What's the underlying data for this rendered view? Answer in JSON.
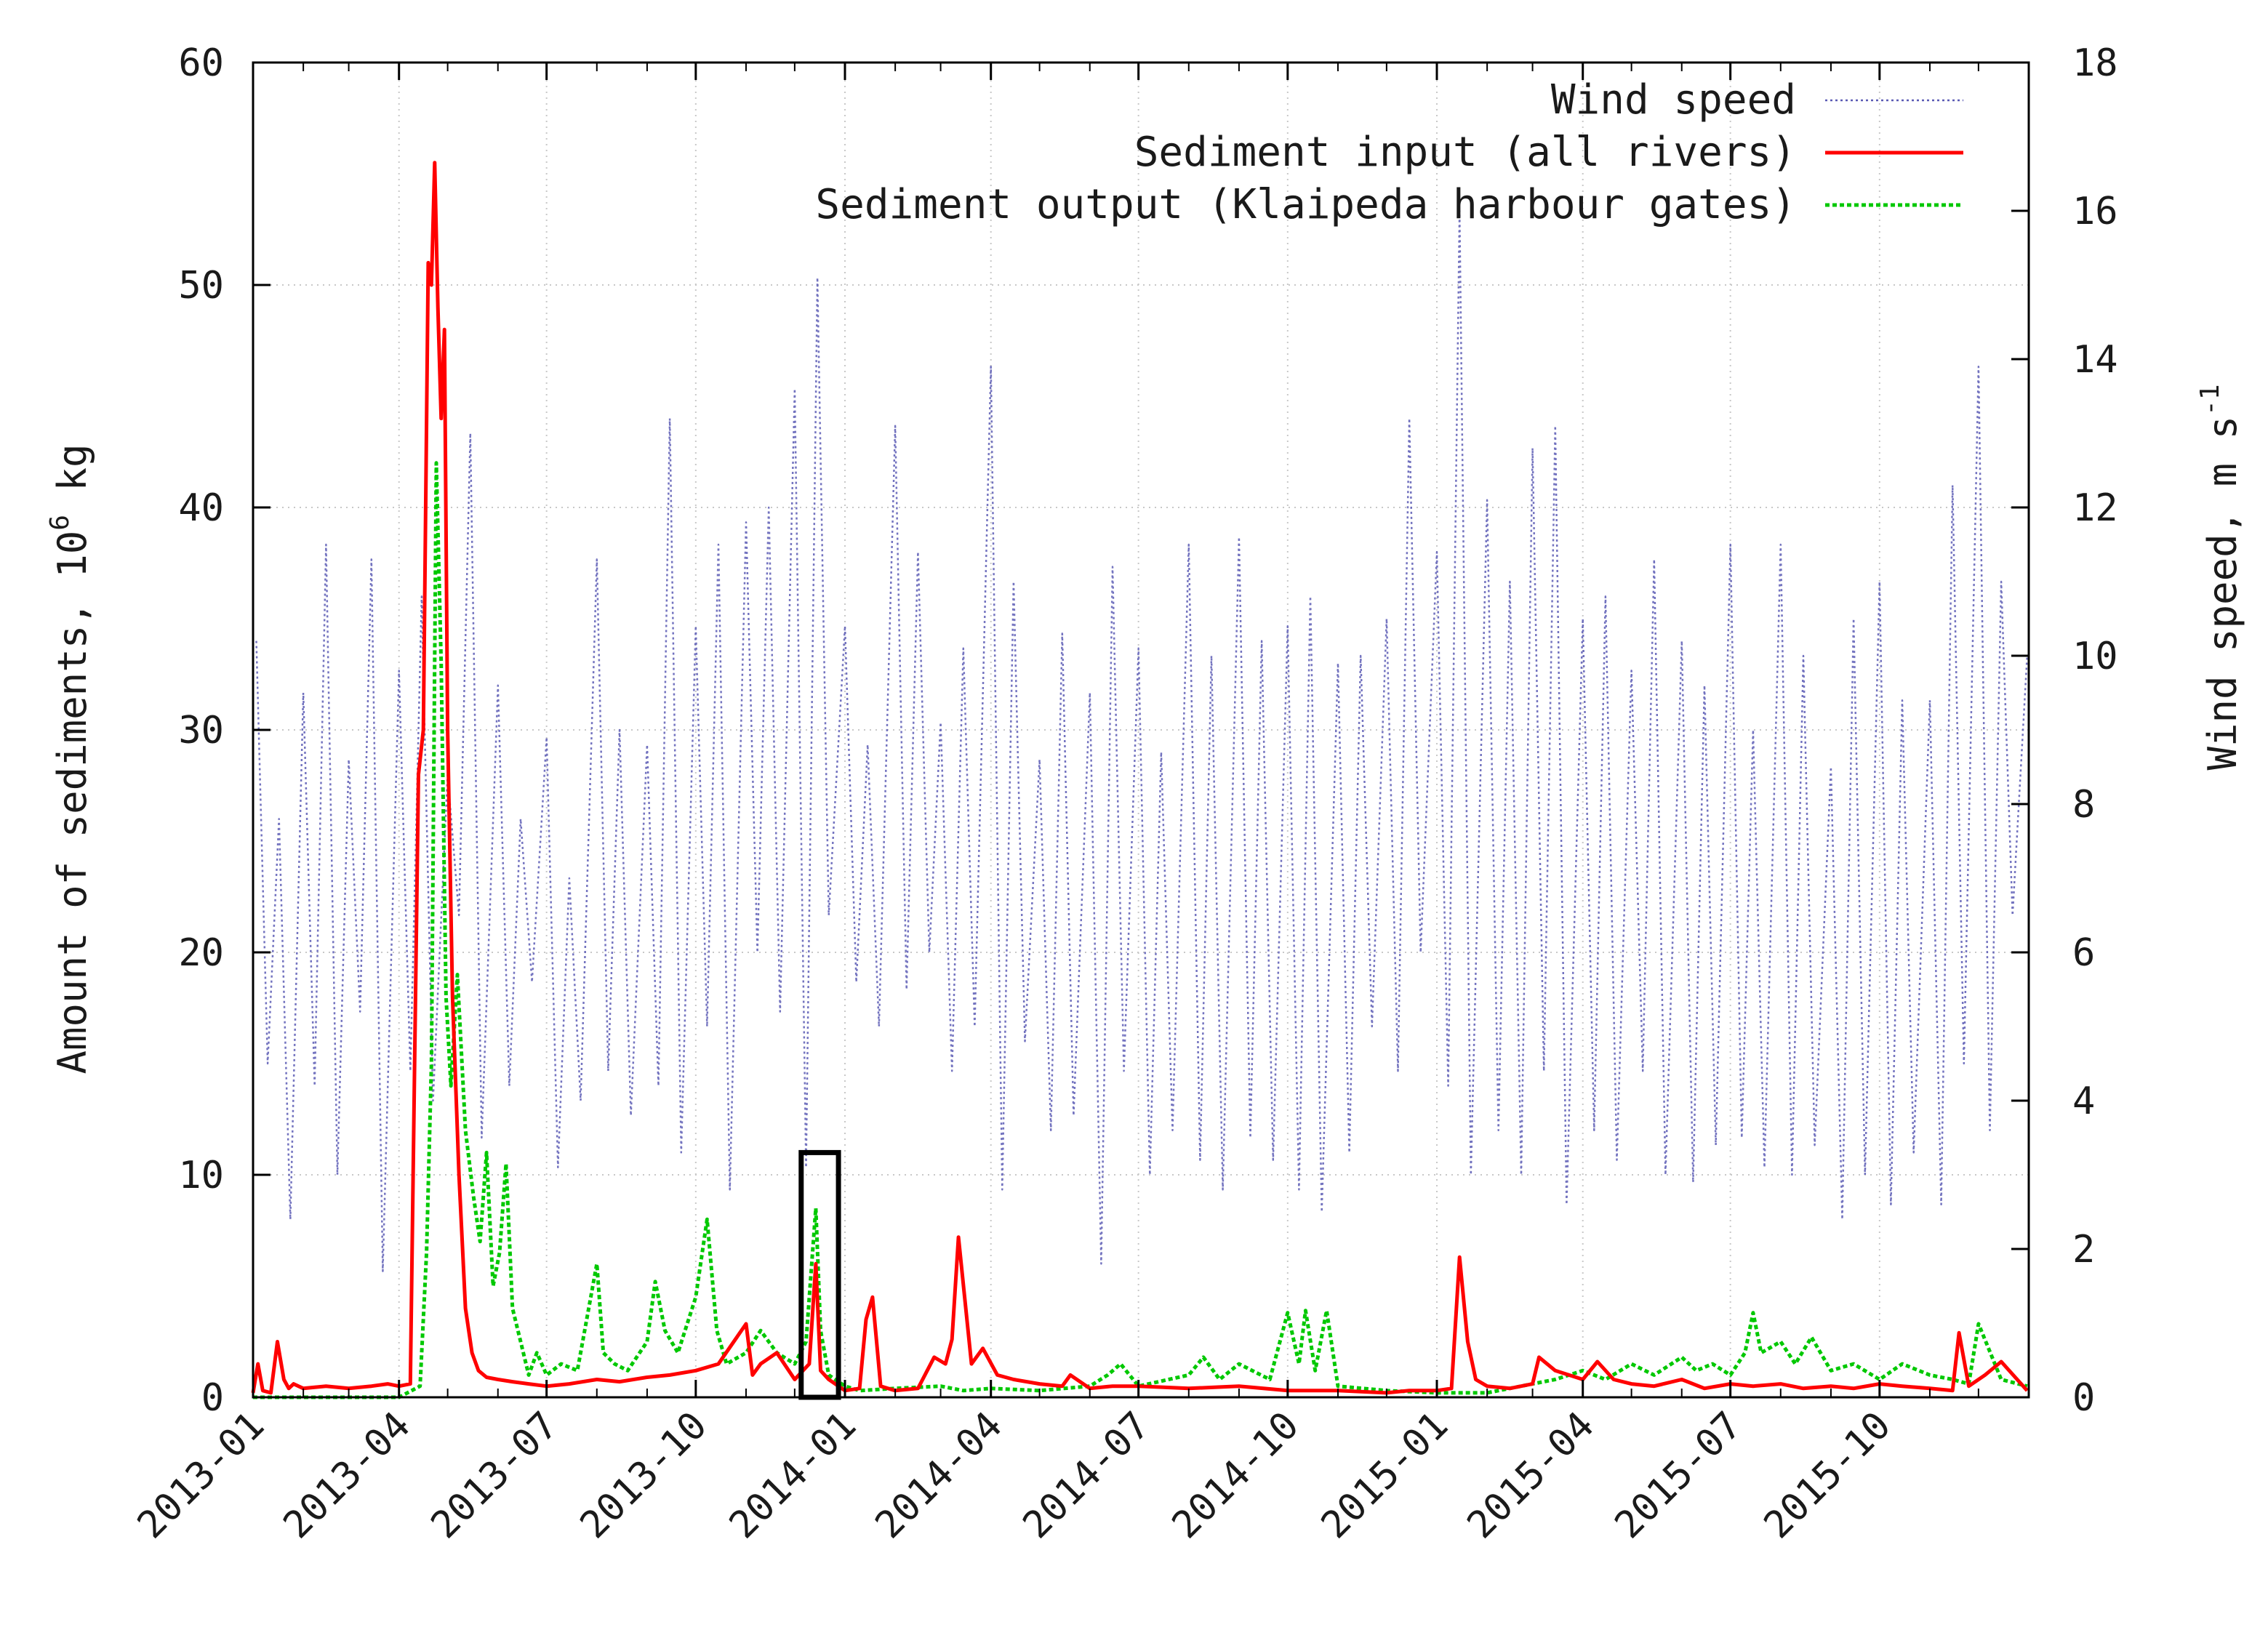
{
  "chart_data": {
    "type": "line",
    "title": "",
    "xlabel": "",
    "ylabel": "Amount of sediments, 10",
    "ylabel_sup": "6",
    "ylabel_unit": " kg",
    "y2label": "Wind speed, m s",
    "y2label_sup": "-1",
    "xlim": [
      "2013-01-01",
      "2016-01-01"
    ],
    "ylim": [
      0,
      60
    ],
    "y2lim": [
      0,
      18
    ],
    "grid": true,
    "legend_position": "top-right",
    "x_ticks": [
      "2013-01",
      "2013-04",
      "2013-07",
      "2013-10",
      "2014-01",
      "2014-04",
      "2014-07",
      "2014-10",
      "2015-01",
      "2015-04",
      "2015-07",
      "2015-10"
    ],
    "y_ticks": [
      "0",
      "10",
      "20",
      "30",
      "40",
      "50",
      "60"
    ],
    "y2_ticks": [
      "0",
      "2",
      "4",
      "6",
      "8",
      "10",
      "12",
      "14",
      "16",
      "18"
    ],
    "highlight_box": {
      "x": [
        "2013-12-05",
        "2013-12-28"
      ],
      "y": [
        0,
        11
      ]
    },
    "series": [
      {
        "name": "Wind speed",
        "axis": "right",
        "color": "#5a5ab4",
        "style": "dotted",
        "x": [
          "2013-01-03",
          "2013-01-10",
          "2013-01-17",
          "2013-01-24",
          "2013-02-01",
          "2013-02-08",
          "2013-02-15",
          "2013-02-22",
          "2013-03-01",
          "2013-03-08",
          "2013-03-15",
          "2013-03-22",
          "2013-04-01",
          "2013-04-08",
          "2013-04-15",
          "2013-04-22",
          "2013-05-01",
          "2013-05-08",
          "2013-05-15",
          "2013-05-22",
          "2013-06-01",
          "2013-06-08",
          "2013-06-15",
          "2013-06-22",
          "2013-07-01",
          "2013-07-08",
          "2013-07-15",
          "2013-07-22",
          "2013-08-01",
          "2013-08-08",
          "2013-08-15",
          "2013-08-22",
          "2013-09-01",
          "2013-09-08",
          "2013-09-15",
          "2013-09-22",
          "2013-10-01",
          "2013-10-08",
          "2013-10-15",
          "2013-10-22",
          "2013-11-01",
          "2013-11-08",
          "2013-11-15",
          "2013-11-22",
          "2013-12-01",
          "2013-12-08",
          "2013-12-15",
          "2013-12-22",
          "2014-01-01",
          "2014-01-08",
          "2014-01-15",
          "2014-01-22",
          "2014-02-01",
          "2014-02-08",
          "2014-02-15",
          "2014-02-22",
          "2014-03-01",
          "2014-03-08",
          "2014-03-15",
          "2014-03-22",
          "2014-04-01",
          "2014-04-08",
          "2014-04-15",
          "2014-04-22",
          "2014-05-01",
          "2014-05-08",
          "2014-05-15",
          "2014-05-22",
          "2014-06-01",
          "2014-06-08",
          "2014-06-15",
          "2014-06-22",
          "2014-07-01",
          "2014-07-08",
          "2014-07-15",
          "2014-07-22",
          "2014-08-01",
          "2014-08-08",
          "2014-08-15",
          "2014-08-22",
          "2014-09-01",
          "2014-09-08",
          "2014-09-15",
          "2014-09-22",
          "2014-10-01",
          "2014-10-08",
          "2014-10-15",
          "2014-10-22",
          "2014-11-01",
          "2014-11-08",
          "2014-11-15",
          "2014-11-22",
          "2014-12-01",
          "2014-12-08",
          "2014-12-15",
          "2014-12-22",
          "2015-01-01",
          "2015-01-08",
          "2015-01-15",
          "2015-01-22",
          "2015-02-01",
          "2015-02-08",
          "2015-02-15",
          "2015-02-22",
          "2015-03-01",
          "2015-03-08",
          "2015-03-15",
          "2015-03-22",
          "2015-04-01",
          "2015-04-08",
          "2015-04-15",
          "2015-04-22",
          "2015-05-01",
          "2015-05-08",
          "2015-05-15",
          "2015-05-22",
          "2015-06-01",
          "2015-06-08",
          "2015-06-15",
          "2015-06-22",
          "2015-07-01",
          "2015-07-08",
          "2015-07-15",
          "2015-07-22",
          "2015-08-01",
          "2015-08-08",
          "2015-08-15",
          "2015-08-22",
          "2015-09-01",
          "2015-09-08",
          "2015-09-15",
          "2015-09-22",
          "2015-10-01",
          "2015-10-08",
          "2015-10-15",
          "2015-10-22",
          "2015-11-01",
          "2015-11-08",
          "2015-11-15",
          "2015-11-22",
          "2015-12-01",
          "2015-12-08",
          "2015-12-15",
          "2015-12-22",
          "2015-12-31"
        ],
        "values": [
          10.2,
          4.5,
          7.8,
          2.4,
          9.5,
          4.2,
          11.5,
          3.0,
          8.6,
          5.2,
          11.3,
          1.7,
          9.8,
          4.4,
          10.8,
          4.0,
          8.4,
          6.5,
          13.0,
          3.5,
          9.6,
          4.2,
          7.8,
          5.6,
          8.9,
          3.1,
          7.0,
          4.0,
          11.3,
          4.4,
          9.0,
          3.8,
          8.8,
          4.2,
          13.2,
          3.3,
          10.4,
          5.0,
          11.5,
          2.8,
          11.8,
          6.0,
          12.0,
          5.2,
          13.6,
          3.1,
          15.1,
          6.5,
          10.4,
          5.6,
          8.8,
          5.0,
          13.1,
          5.5,
          11.4,
          6.0,
          9.1,
          4.4,
          10.1,
          5.0,
          13.9,
          2.8,
          11.0,
          4.8,
          8.6,
          3.6,
          10.3,
          3.8,
          9.5,
          1.8,
          11.2,
          4.4,
          10.1,
          3.0,
          8.7,
          3.6,
          11.5,
          3.2,
          10.0,
          2.8,
          11.6,
          3.5,
          10.2,
          3.2,
          10.4,
          2.8,
          10.8,
          2.5,
          9.9,
          3.3,
          10.0,
          5.0,
          10.5,
          4.4,
          13.2,
          6.0,
          11.4,
          4.2,
          16.0,
          3.0,
          12.1,
          3.6,
          11.0,
          3.0,
          12.8,
          4.4,
          13.1,
          2.6,
          10.5,
          3.6,
          10.8,
          3.2,
          9.8,
          4.4,
          11.3,
          3.0,
          10.2,
          2.9,
          9.6,
          3.4,
          11.5,
          3.5,
          9.0,
          3.1,
          11.5,
          3.0,
          10.0,
          3.4,
          8.5,
          2.4,
          10.5,
          3.0,
          11.0,
          2.6,
          9.4,
          3.3,
          9.4,
          2.6,
          12.3,
          4.5,
          13.9,
          3.6,
          11.0,
          6.5,
          10.0
        ],
        "values_note_max": 16.0
      },
      {
        "name": "Sediment input (all rivers)",
        "axis": "left",
        "color": "#ff0000",
        "style": "solid",
        "x": [
          "2013-01-01",
          "2013-01-04",
          "2013-01-07",
          "2013-01-12",
          "2013-01-16",
          "2013-01-20",
          "2013-01-23",
          "2013-01-26",
          "2013-02-01",
          "2013-02-15",
          "2013-03-01",
          "2013-03-15",
          "2013-03-25",
          "2013-04-01",
          "2013-04-08",
          "2013-04-13",
          "2013-04-16",
          "2013-04-19",
          "2013-04-21",
          "2013-04-23",
          "2013-04-25",
          "2013-04-27",
          "2013-04-29",
          "2013-05-01",
          "2013-05-04",
          "2013-05-08",
          "2013-05-12",
          "2013-05-16",
          "2013-05-20",
          "2013-05-25",
          "2013-06-01",
          "2013-06-10",
          "2013-06-20",
          "2013-07-01",
          "2013-07-15",
          "2013-08-01",
          "2013-08-15",
          "2013-09-01",
          "2013-09-15",
          "2013-10-01",
          "2013-10-15",
          "2013-11-01",
          "2013-11-05",
          "2013-11-10",
          "2013-11-20",
          "2013-12-01",
          "2013-12-10",
          "2013-12-14",
          "2013-12-17",
          "2013-12-22",
          "2014-01-01",
          "2014-01-10",
          "2014-01-14",
          "2014-01-18",
          "2014-01-23",
          "2014-02-01",
          "2014-02-15",
          "2014-02-25",
          "2014-03-04",
          "2014-03-08",
          "2014-03-12",
          "2014-03-20",
          "2014-03-27",
          "2014-04-05",
          "2014-04-15",
          "2014-05-01",
          "2014-05-15",
          "2014-05-20",
          "2014-06-01",
          "2014-06-15",
          "2014-07-01",
          "2014-08-01",
          "2014-09-01",
          "2014-10-01",
          "2014-11-01",
          "2014-12-01",
          "2014-12-15",
          "2015-01-01",
          "2015-01-10",
          "2015-01-15",
          "2015-01-20",
          "2015-01-25",
          "2015-02-01",
          "2015-02-15",
          "2015-03-01",
          "2015-03-05",
          "2015-03-15",
          "2015-04-01",
          "2015-04-10",
          "2015-04-20",
          "2015-05-01",
          "2015-05-15",
          "2015-06-01",
          "2015-06-15",
          "2015-07-01",
          "2015-07-15",
          "2015-08-01",
          "2015-08-15",
          "2015-09-01",
          "2015-09-15",
          "2015-10-01",
          "2015-10-15",
          "2015-11-01",
          "2015-11-15",
          "2015-11-19",
          "2015-11-25",
          "2015-12-05",
          "2015-12-15",
          "2015-12-31"
        ],
        "values": [
          0.2,
          1.5,
          0.3,
          0.2,
          2.5,
          0.8,
          0.4,
          0.6,
          0.4,
          0.5,
          0.4,
          0.5,
          0.6,
          0.5,
          0.6,
          28.0,
          30.0,
          51.0,
          50.0,
          55.5,
          49.0,
          44.0,
          48.0,
          30.0,
          18.0,
          10.0,
          4.0,
          2.0,
          1.2,
          0.9,
          0.8,
          0.7,
          0.6,
          0.5,
          0.6,
          0.8,
          0.7,
          0.9,
          1.0,
          1.2,
          1.5,
          3.3,
          1.0,
          1.5,
          2.0,
          0.8,
          1.5,
          6.0,
          1.2,
          0.8,
          0.3,
          0.4,
          3.5,
          4.5,
          0.5,
          0.3,
          0.4,
          1.8,
          1.5,
          2.6,
          7.2,
          1.5,
          2.2,
          1.0,
          0.8,
          0.6,
          0.5,
          1.0,
          0.4,
          0.5,
          0.5,
          0.4,
          0.5,
          0.3,
          0.3,
          0.2,
          0.3,
          0.3,
          0.4,
          6.3,
          2.5,
          0.8,
          0.5,
          0.4,
          0.6,
          1.8,
          1.2,
          0.8,
          1.6,
          0.8,
          0.6,
          0.5,
          0.8,
          0.4,
          0.6,
          0.5,
          0.6,
          0.4,
          0.5,
          0.4,
          0.6,
          0.5,
          0.4,
          0.3,
          2.9,
          0.5,
          1.0,
          1.6,
          0.3
        ]
      },
      {
        "name": "Sediment output (Klaipeda harbour gates)",
        "axis": "left",
        "color": "#00c800",
        "style": "dotted",
        "x": [
          "2013-01-01",
          "2013-02-15",
          "2013-04-01",
          "2013-04-14",
          "2013-04-18",
          "2013-04-21",
          "2013-04-24",
          "2013-04-27",
          "2013-04-30",
          "2013-05-03",
          "2013-05-07",
          "2013-05-12",
          "2013-05-17",
          "2013-05-21",
          "2013-05-25",
          "2013-05-29",
          "2013-06-02",
          "2013-06-06",
          "2013-06-10",
          "2013-06-15",
          "2013-06-20",
          "2013-06-25",
          "2013-07-01",
          "2013-07-10",
          "2013-07-20",
          "2013-08-01",
          "2013-08-05",
          "2013-08-12",
          "2013-08-20",
          "2013-09-01",
          "2013-09-06",
          "2013-09-12",
          "2013-09-20",
          "2013-10-01",
          "2013-10-08",
          "2013-10-14",
          "2013-10-20",
          "2013-11-01",
          "2013-11-10",
          "2013-11-20",
          "2013-12-01",
          "2013-12-08",
          "2013-12-14",
          "2013-12-17",
          "2013-12-22",
          "2014-01-01",
          "2014-01-10",
          "2014-02-01",
          "2014-03-01",
          "2014-03-15",
          "2014-04-01",
          "2014-05-01",
          "2014-06-01",
          "2014-06-12",
          "2014-06-20",
          "2014-07-01",
          "2014-08-01",
          "2014-08-10",
          "2014-08-20",
          "2014-09-01",
          "2014-09-20",
          "2014-10-01",
          "2014-10-08",
          "2014-10-12",
          "2014-10-18",
          "2014-10-25",
          "2014-11-01",
          "2014-12-01",
          "2015-01-01",
          "2015-02-01",
          "2015-03-01",
          "2015-03-15",
          "2015-04-01",
          "2015-04-15",
          "2015-05-01",
          "2015-05-15",
          "2015-06-01",
          "2015-06-10",
          "2015-06-20",
          "2015-07-01",
          "2015-07-10",
          "2015-07-15",
          "2015-07-20",
          "2015-08-01",
          "2015-08-10",
          "2015-08-20",
          "2015-09-01",
          "2015-09-15",
          "2015-10-01",
          "2015-10-15",
          "2015-11-01",
          "2015-11-15",
          "2015-11-25",
          "2015-12-01",
          "2015-12-15",
          "2015-12-31"
        ],
        "values": [
          0.0,
          0.0,
          0.0,
          0.5,
          6.5,
          15.0,
          42.0,
          33.0,
          18.0,
          14.0,
          19.0,
          12.0,
          9.0,
          7.0,
          11.0,
          5.0,
          6.5,
          10.5,
          4.0,
          2.5,
          1.0,
          2.0,
          1.0,
          1.5,
          1.2,
          6.0,
          2.0,
          1.5,
          1.2,
          2.5,
          5.2,
          3.0,
          2.0,
          4.5,
          8.0,
          3.0,
          1.5,
          2.0,
          3.0,
          2.0,
          1.5,
          2.5,
          8.5,
          3.0,
          1.0,
          0.5,
          0.3,
          0.4,
          0.5,
          0.3,
          0.4,
          0.3,
          0.5,
          1.0,
          1.5,
          0.5,
          1.0,
          1.8,
          0.8,
          1.5,
          0.8,
          3.8,
          1.5,
          3.9,
          1.2,
          3.9,
          0.5,
          0.3,
          0.2,
          0.2,
          0.6,
          0.8,
          1.2,
          0.8,
          1.5,
          1.0,
          1.8,
          1.2,
          1.5,
          1.0,
          2.0,
          3.8,
          2.0,
          2.5,
          1.5,
          2.7,
          1.2,
          1.5,
          0.8,
          1.5,
          1.0,
          0.8,
          0.6,
          3.3,
          0.8,
          0.5
        ]
      }
    ]
  }
}
